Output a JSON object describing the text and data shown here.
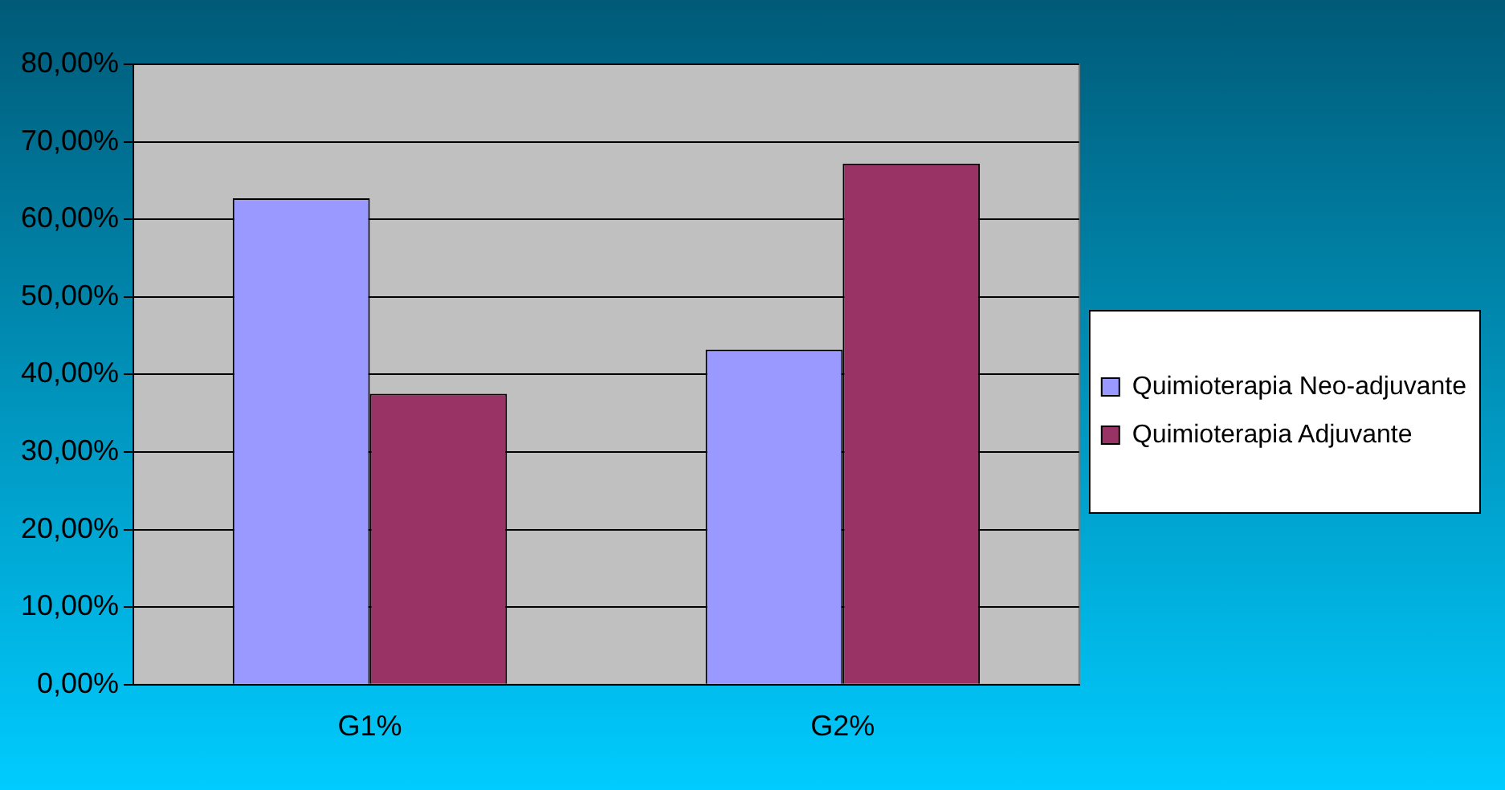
{
  "chart_data": {
    "type": "bar",
    "categories": [
      "G1%",
      "G2%"
    ],
    "series": [
      {
        "name": "Quimioterapia Neo-adjuvante",
        "color": "#9999ff",
        "values": [
          62.7,
          43.2
        ]
      },
      {
        "name": "Quimioterapia Adjuvante",
        "color": "#993366",
        "values": [
          37.5,
          67.2
        ]
      }
    ],
    "ylim": [
      0,
      80
    ],
    "yticks": [
      {
        "value": 0,
        "label": "0,00%"
      },
      {
        "value": 10,
        "label": "10,00%"
      },
      {
        "value": 20,
        "label": "20,00%"
      },
      {
        "value": 30,
        "label": "30,00%"
      },
      {
        "value": 40,
        "label": "40,00%"
      },
      {
        "value": 50,
        "label": "50,00%"
      },
      {
        "value": 60,
        "label": "60,00%"
      },
      {
        "value": 70,
        "label": "70,00%"
      },
      {
        "value": 80,
        "label": "80,00%"
      }
    ],
    "grid": "y",
    "legend": "right"
  }
}
